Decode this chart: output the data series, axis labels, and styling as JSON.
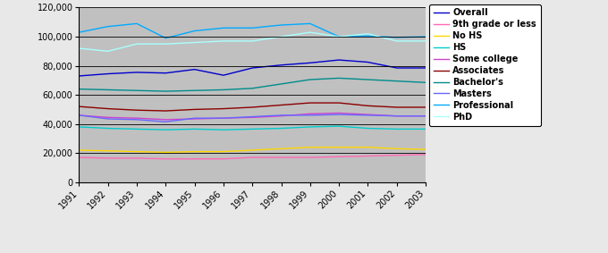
{
  "years": [
    1991,
    1992,
    1993,
    1994,
    1995,
    1996,
    1997,
    1998,
    1999,
    2000,
    2001,
    2002,
    2003
  ],
  "series": {
    "Overall": [
      73000,
      74500,
      75500,
      75000,
      77500,
      73500,
      78500,
      80500,
      82000,
      84000,
      82500,
      78500,
      78500
    ],
    "9th grade or less": [
      17000,
      16500,
      16500,
      16000,
      16000,
      16000,
      17000,
      17000,
      17000,
      17500,
      18000,
      18500,
      19000
    ],
    "No HS": [
      22000,
      21500,
      21000,
      20500,
      21000,
      21000,
      22000,
      23000,
      24000,
      24000,
      24000,
      23000,
      22500
    ],
    "HS": [
      38000,
      37000,
      36500,
      36000,
      36500,
      36000,
      36500,
      37000,
      38000,
      38500,
      37000,
      36500,
      36500
    ],
    "Some college": [
      46000,
      44500,
      44000,
      43000,
      43500,
      44000,
      44500,
      45500,
      47000,
      47500,
      46500,
      45500,
      45500
    ],
    "Associates": [
      52000,
      50500,
      49500,
      49000,
      50000,
      50500,
      51500,
      53000,
      54500,
      54500,
      52500,
      51500,
      51500
    ],
    "Bachelor's": [
      64000,
      63500,
      63000,
      62500,
      63000,
      63500,
      64500,
      67500,
      70500,
      71500,
      70500,
      69500,
      68500
    ],
    "Masters": [
      46000,
      43500,
      43000,
      41500,
      44000,
      44000,
      45000,
      46000,
      46000,
      46500,
      46000,
      45500,
      45500
    ],
    "Professional": [
      103000,
      107000,
      109000,
      99000,
      104000,
      106000,
      106000,
      108000,
      109000,
      100000,
      100500,
      99500,
      100000
    ],
    "PhD": [
      92000,
      90000,
      95000,
      95000,
      96000,
      97000,
      97000,
      100000,
      103000,
      100000,
      102000,
      97000,
      97000
    ]
  },
  "colors": {
    "Overall": "#0000CC",
    "9th grade or less": "#FF69B4",
    "No HS": "#FFD700",
    "HS": "#00CCCC",
    "Some college": "#CC44CC",
    "Associates": "#8B0000",
    "Bachelor's": "#008B8B",
    "Masters": "#6666FF",
    "Professional": "#00AAFF",
    "PhD": "#AAFFFF"
  },
  "ylim": [
    0,
    120000
  ],
  "yticks": [
    0,
    20000,
    40000,
    60000,
    80000,
    100000,
    120000
  ],
  "background_color": "#C0C0C0",
  "fig_bg": "#E8E8E8",
  "legend_order": [
    "Overall",
    "9th grade or less",
    "No HS",
    "HS",
    "Some college",
    "Associates",
    "Bachelor's",
    "Masters",
    "Professional",
    "PhD"
  ],
  "legend_fontsize": 7,
  "tick_fontsize": 7
}
